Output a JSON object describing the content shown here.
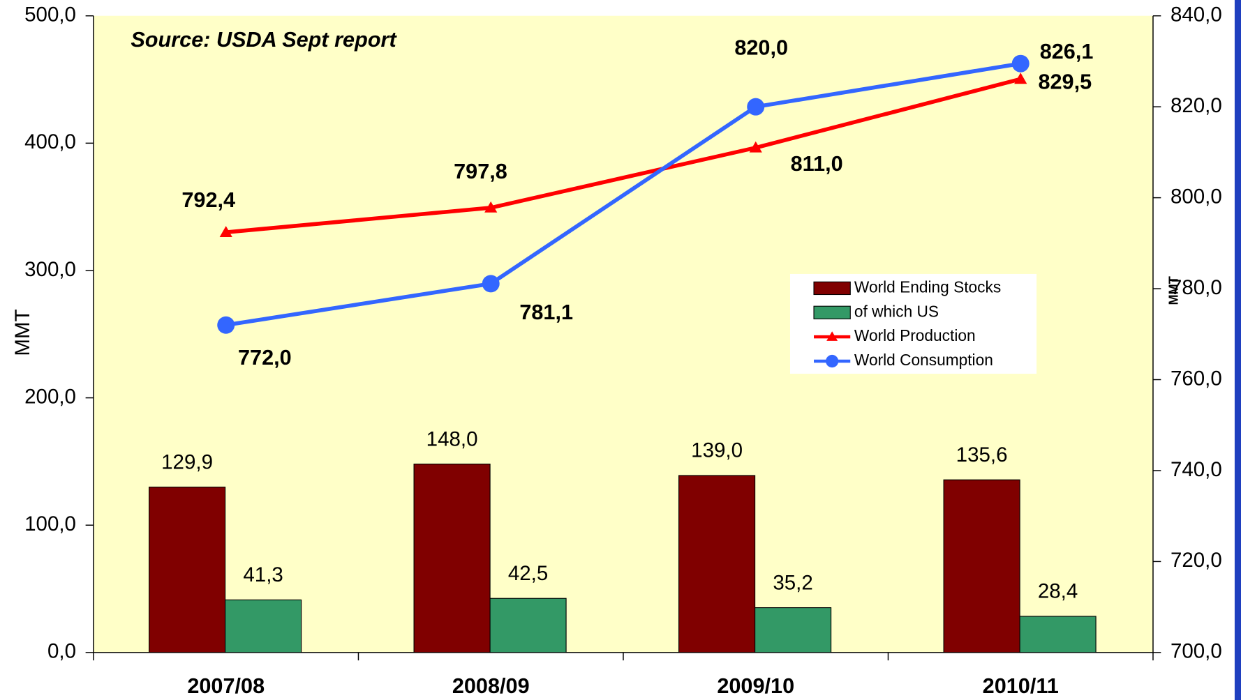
{
  "chart_data": {
    "type": "bar",
    "annotation": "Source: USDA Sept report",
    "ylabel": "MMT",
    "y2label": "MMT",
    "categories": [
      "2007/08",
      "2008/09",
      "2009/10",
      "2010/11"
    ],
    "series": [
      {
        "name": "World Ending Stocks",
        "type": "bar",
        "color": "#800000",
        "values": [
          129.9,
          148.0,
          139.0,
          135.6
        ],
        "value_labels": [
          "129,9",
          "148,0",
          "139,0",
          "135,6"
        ]
      },
      {
        "name": "of which US",
        "type": "bar",
        "color": "#339966",
        "values": [
          41.3,
          42.5,
          35.2,
          28.4
        ],
        "value_labels": [
          "41,3",
          "42,5",
          "35,2",
          "28,4"
        ]
      },
      {
        "name": "World Production",
        "type": "line",
        "axis": "y2",
        "marker": "triangle",
        "color": "#ff0000",
        "values": [
          792.4,
          797.8,
          811.0,
          826.1
        ],
        "value_labels": [
          "792,4",
          "797,8",
          "811,0",
          "826,1"
        ]
      },
      {
        "name": "World Consumption",
        "type": "line",
        "axis": "y2",
        "marker": "circle",
        "color": "#3366ff",
        "values": [
          772.0,
          781.1,
          820.0,
          829.5
        ],
        "value_labels": [
          "772,0",
          "781,1",
          "820,0",
          "829,5"
        ]
      }
    ],
    "ylim": [
      0,
      500
    ],
    "yticks": [
      {
        "value": 0,
        "label": "0,0"
      },
      {
        "value": 100,
        "label": "100,0"
      },
      {
        "value": 200,
        "label": "200,0"
      },
      {
        "value": 300,
        "label": "300,0"
      },
      {
        "value": 400,
        "label": "400,0"
      },
      {
        "value": 500,
        "label": "500,0"
      }
    ],
    "y2lim": [
      700,
      840
    ],
    "y2ticks": [
      {
        "value": 700,
        "label": "700,0"
      },
      {
        "value": 720,
        "label": "720,0"
      },
      {
        "value": 740,
        "label": "740,0"
      },
      {
        "value": 760,
        "label": "760,0"
      },
      {
        "value": 780,
        "label": "780,0"
      },
      {
        "value": 800,
        "label": "800,0"
      },
      {
        "value": 820,
        "label": "820,0"
      },
      {
        "value": 840,
        "label": "840,0"
      }
    ],
    "grid": false,
    "background": "#ffffc8"
  }
}
